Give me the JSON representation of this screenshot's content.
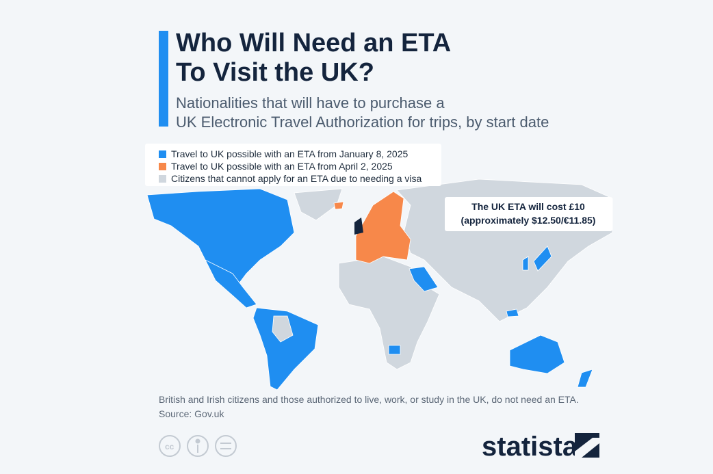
{
  "header": {
    "title": [
      "Who Will Need an ETA",
      "To Visit the UK?"
    ],
    "subtitle": [
      "Nationalities that will have to purchase a",
      "UK Electronic Travel Authorization for trips, by start date"
    ]
  },
  "legend": {
    "items": [
      {
        "label": "Travel to UK possible with an ETA from January 8, 2025",
        "color": "#1f8ef1"
      },
      {
        "label": "Travel to UK possible with an ETA from April 2, 2025",
        "color": "#f7884a"
      },
      {
        "label": "Citizens that cannot apply for an ETA due to needing a visa",
        "color": "#d0d7de"
      }
    ]
  },
  "callout": [
    "The UK ETA will cost £10",
    "(approximately $12.50/€11.85)"
  ],
  "footer": {
    "note": "British and Irish citizens and those authorized to live, work, or study in the UK, do not need an ETA.",
    "source": "Source: Gov.uk"
  },
  "brand": "statista"
}
